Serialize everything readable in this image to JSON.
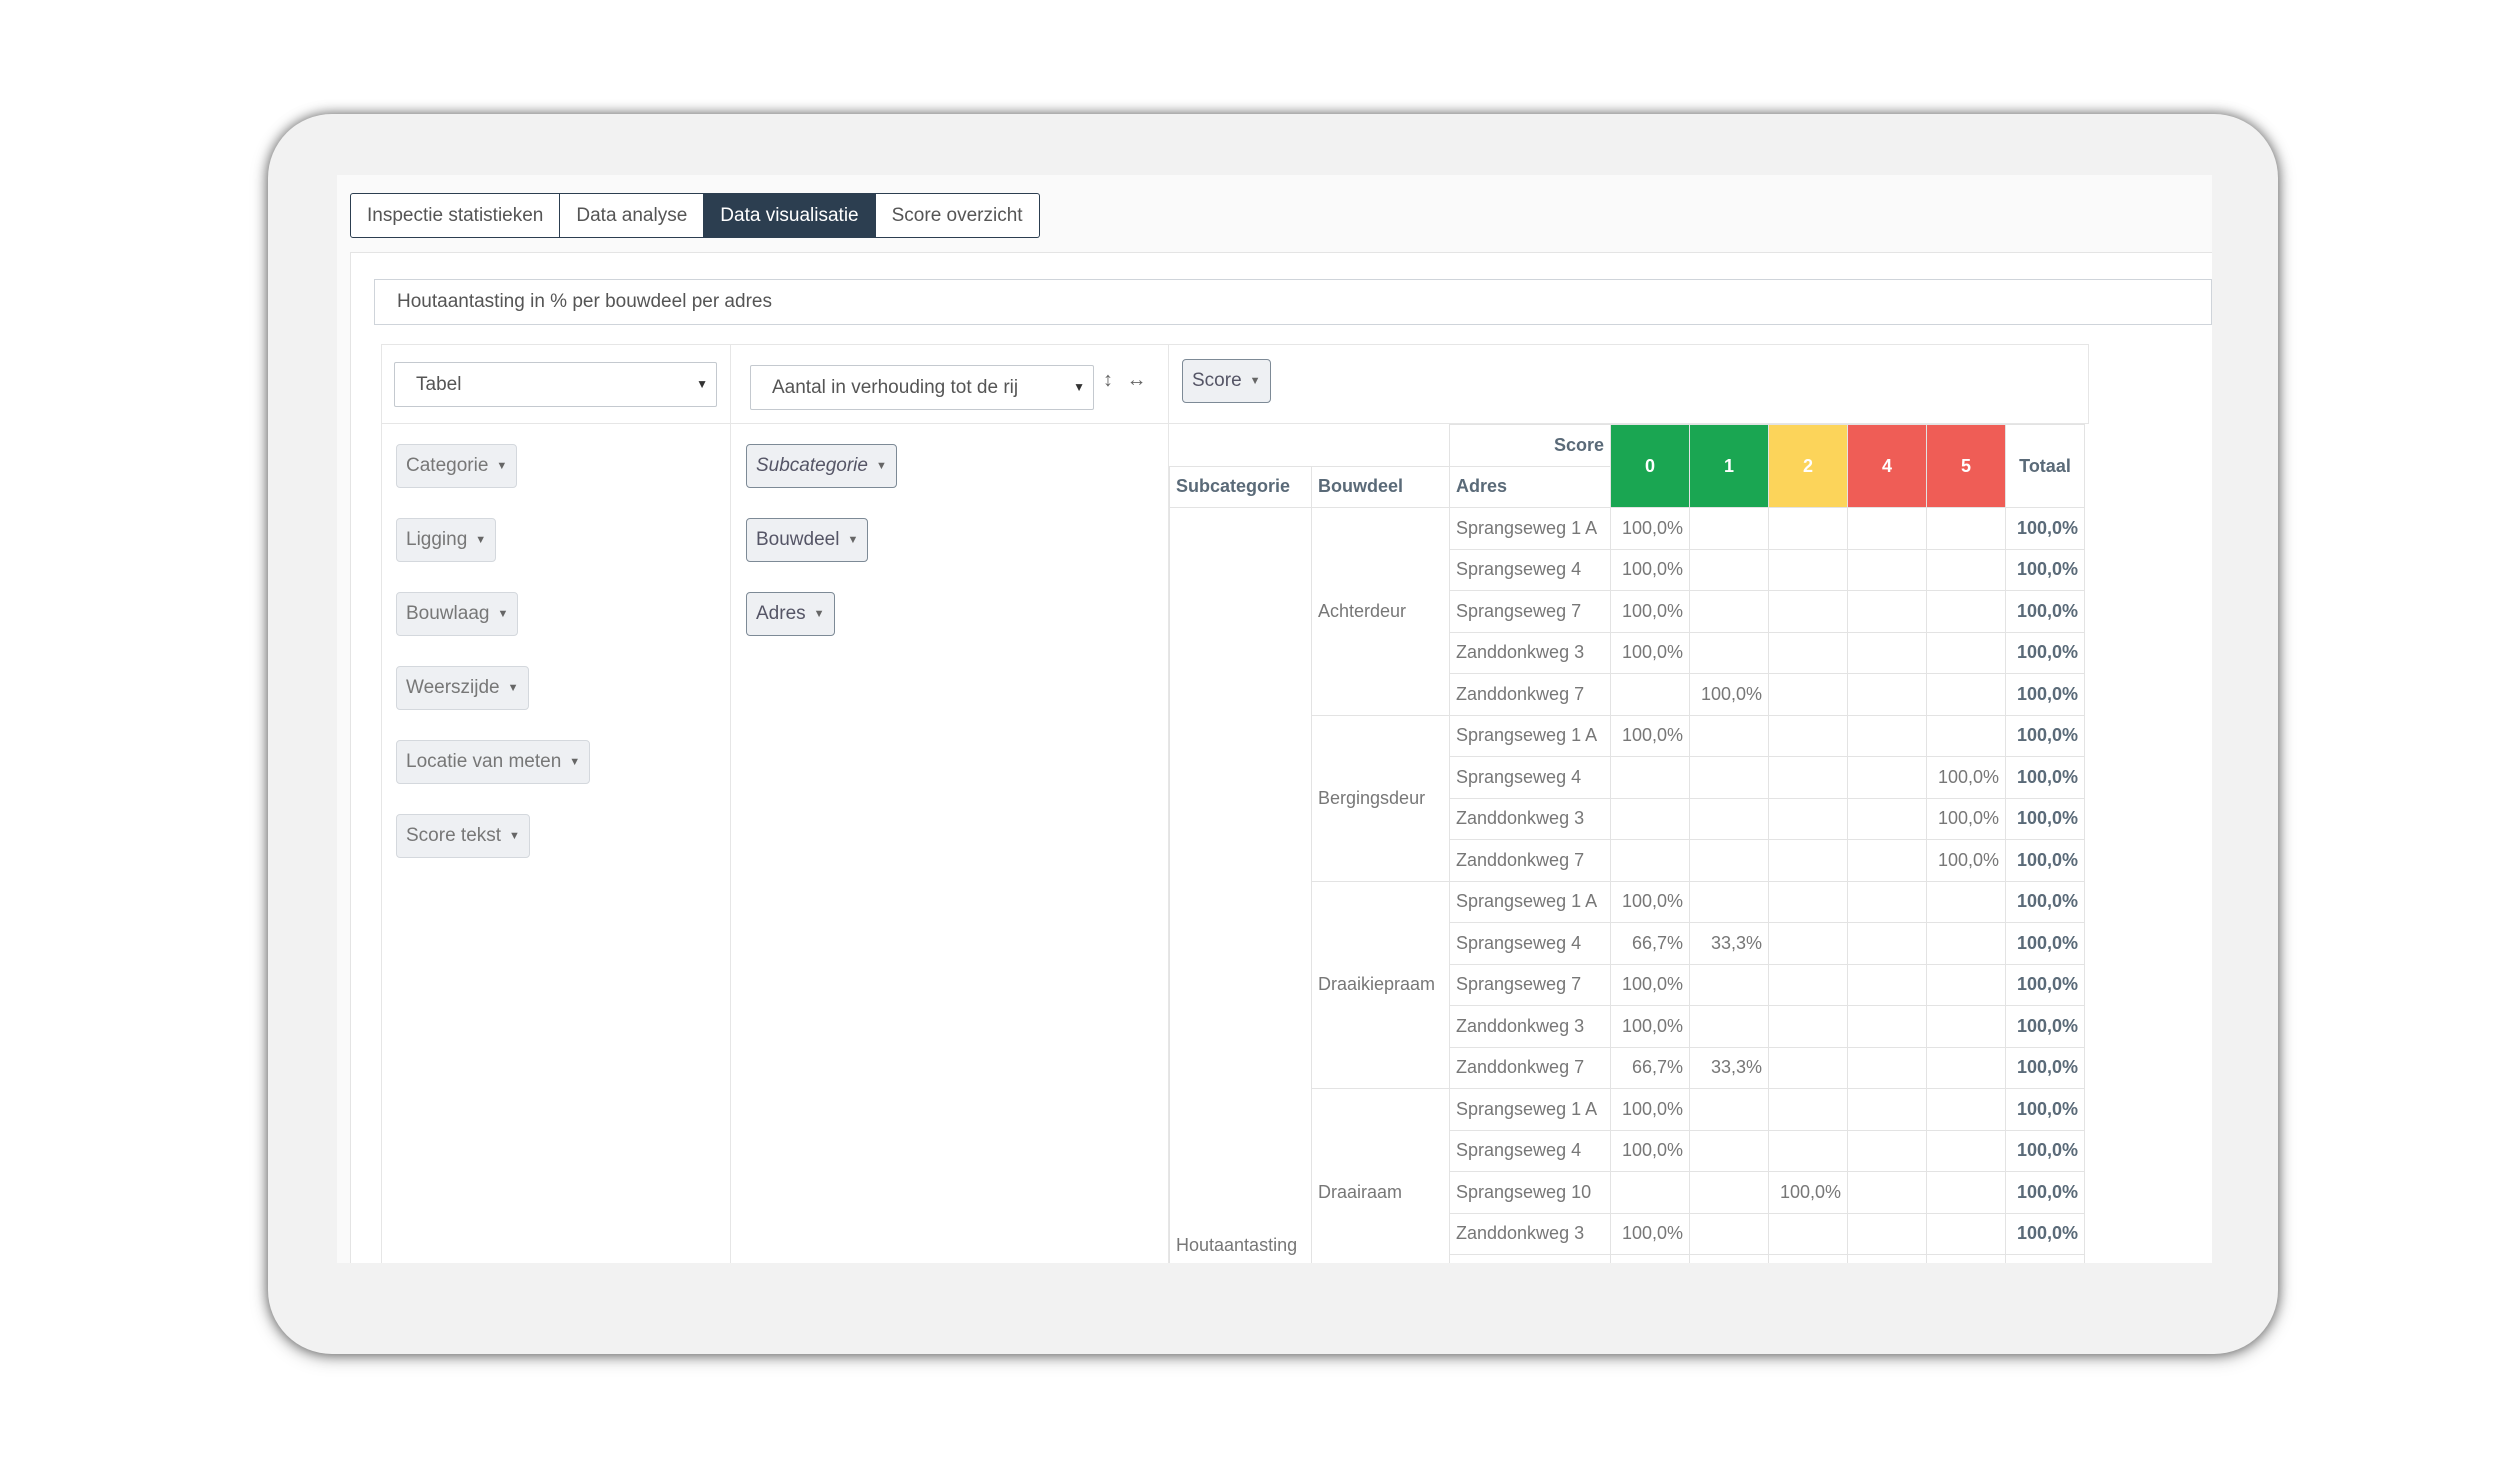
{
  "tabs": [
    {
      "label": "Inspectie statistieken",
      "active": false
    },
    {
      "label": "Data analyse",
      "active": false
    },
    {
      "label": "Data visualisatie",
      "active": true
    },
    {
      "label": "Score overzicht",
      "active": false
    }
  ],
  "chart_title": "Houtaantasting in % per bouwdeel per adres",
  "renderer": {
    "selected": "Tabel"
  },
  "aggregator": {
    "selected": "Aantal in verhouding tot de rij"
  },
  "sort_arrows": "↕ ↔",
  "column_attributes": [
    {
      "label": "Score"
    }
  ],
  "unused_attributes": [
    {
      "label": "Categorie"
    },
    {
      "label": "Ligging"
    },
    {
      "label": "Bouwlaag"
    },
    {
      "label": "Weerszijde"
    },
    {
      "label": "Locatie van meten"
    },
    {
      "label": "Score tekst"
    }
  ],
  "row_attributes": [
    {
      "label": "Subcategorie"
    },
    {
      "label": "Bouwdeel"
    },
    {
      "label": "Adres"
    }
  ],
  "table": {
    "col_axis_label": "Score",
    "row_headers": [
      "Subcategorie",
      "Bouwdeel",
      "Adres"
    ],
    "score_columns": [
      {
        "label": "0",
        "color": "#1aa652"
      },
      {
        "label": "1",
        "color": "#1aa652"
      },
      {
        "label": "2",
        "color": "#fcd45a"
      },
      {
        "label": "4",
        "color": "#ef5d56"
      },
      {
        "label": "5",
        "color": "#ef5d56"
      }
    ],
    "total_label": "Totaal",
    "subcategory": "Houtaantasting",
    "groups": [
      {
        "bouwdeel": "Achterdeur",
        "rows": [
          {
            "adres": "Sprangseweg 1 A",
            "values": [
              "100,0%",
              "",
              "",
              "",
              ""
            ],
            "total": "100,0%"
          },
          {
            "adres": "Sprangseweg 4",
            "values": [
              "100,0%",
              "",
              "",
              "",
              ""
            ],
            "total": "100,0%"
          },
          {
            "adres": "Sprangseweg 7",
            "values": [
              "100,0%",
              "",
              "",
              "",
              ""
            ],
            "total": "100,0%"
          },
          {
            "adres": "Zanddonkweg 3",
            "values": [
              "100,0%",
              "",
              "",
              "",
              ""
            ],
            "total": "100,0%"
          },
          {
            "adres": "Zanddonkweg 7",
            "values": [
              "",
              "100,0%",
              "",
              "",
              ""
            ],
            "total": "100,0%"
          }
        ]
      },
      {
        "bouwdeel": "Bergingsdeur",
        "rows": [
          {
            "adres": "Sprangseweg 1 A",
            "values": [
              "100,0%",
              "",
              "",
              "",
              ""
            ],
            "total": "100,0%"
          },
          {
            "adres": "Sprangseweg 4",
            "values": [
              "",
              "",
              "",
              "",
              "100,0%"
            ],
            "total": "100,0%"
          },
          {
            "adres": "Zanddonkweg 3",
            "values": [
              "",
              "",
              "",
              "",
              "100,0%"
            ],
            "total": "100,0%"
          },
          {
            "adres": "Zanddonkweg 7",
            "values": [
              "",
              "",
              "",
              "",
              "100,0%"
            ],
            "total": "100,0%"
          }
        ]
      },
      {
        "bouwdeel": "Draaikiepraam",
        "rows": [
          {
            "adres": "Sprangseweg 1 A",
            "values": [
              "100,0%",
              "",
              "",
              "",
              ""
            ],
            "total": "100,0%"
          },
          {
            "adres": "Sprangseweg 4",
            "values": [
              "66,7%",
              "33,3%",
              "",
              "",
              ""
            ],
            "total": "100,0%"
          },
          {
            "adres": "Sprangseweg 7",
            "values": [
              "100,0%",
              "",
              "",
              "",
              ""
            ],
            "total": "100,0%"
          },
          {
            "adres": "Zanddonkweg 3",
            "values": [
              "100,0%",
              "",
              "",
              "",
              ""
            ],
            "total": "100,0%"
          },
          {
            "adres": "Zanddonkweg 7",
            "values": [
              "66,7%",
              "33,3%",
              "",
              "",
              ""
            ],
            "total": "100,0%"
          }
        ]
      },
      {
        "bouwdeel": "Draairaam",
        "rows": [
          {
            "adres": "Sprangseweg 1 A",
            "values": [
              "100,0%",
              "",
              "",
              "",
              ""
            ],
            "total": "100,0%"
          },
          {
            "adres": "Sprangseweg 4",
            "values": [
              "100,0%",
              "",
              "",
              "",
              ""
            ],
            "total": "100,0%"
          },
          {
            "adres": "Sprangseweg 10",
            "values": [
              "",
              "",
              "100,0%",
              "",
              ""
            ],
            "total": "100,0%"
          },
          {
            "adres": "Zanddonkweg 3",
            "values": [
              "100,0%",
              "",
              "",
              "",
              ""
            ],
            "total": "100,0%"
          },
          {
            "adres": "",
            "values": [
              "",
              "",
              "",
              "",
              ""
            ],
            "total": ""
          }
        ]
      }
    ]
  }
}
